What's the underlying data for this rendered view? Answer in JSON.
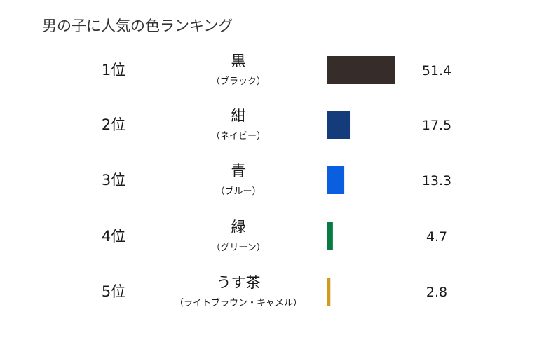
{
  "chart_data": {
    "type": "bar",
    "orientation": "horizontal",
    "title": "男の子に人気の色ランキング",
    "xlabel": "",
    "ylabel": "",
    "xlim": [
      0,
      51.4
    ],
    "grid": false,
    "legend": "none",
    "rows": [
      {
        "rank": "1位",
        "name": "黒",
        "reading": "（ブラック）",
        "value": 51.4,
        "color": "#362d2b"
      },
      {
        "rank": "2位",
        "name": "紺",
        "reading": "（ネイビー）",
        "value": 17.5,
        "color": "#143c7a"
      },
      {
        "rank": "3位",
        "name": "青",
        "reading": "（ブルー）",
        "value": 13.3,
        "color": "#0a5fe0"
      },
      {
        "rank": "4位",
        "name": "緑",
        "reading": "（グリーン）",
        "value": 4.7,
        "color": "#077b42"
      },
      {
        "rank": "5位",
        "name": "うす茶",
        "reading": "（ライトブラウン・キャメル）",
        "value": 2.8,
        "color": "#d09a1e"
      }
    ]
  }
}
